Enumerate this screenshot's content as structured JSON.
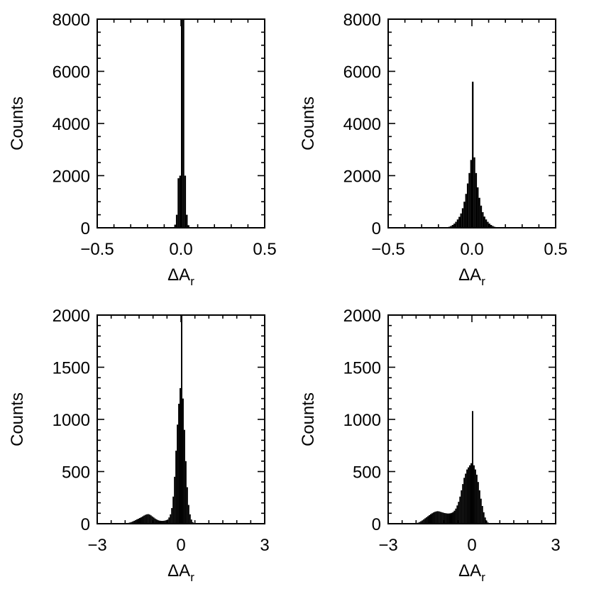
{
  "chart_data": [
    {
      "type": "bar",
      "panel": "top-left",
      "xlabel": "ΔA",
      "xlabel_sub": "r",
      "ylabel": "Counts",
      "xlim": [
        -0.5,
        0.5
      ],
      "ylim": [
        0,
        8000
      ],
      "xticks": [
        -0.5,
        0.0,
        0.5
      ],
      "xtick_labels": [
        "−0.5",
        "0.0",
        "0.5"
      ],
      "xminor": 0.1,
      "yticks": [
        0,
        2000,
        4000,
        6000,
        8000
      ],
      "ytick_labels": [
        "0",
        "2000",
        "4000",
        "6000",
        "8000"
      ],
      "yminor": 500,
      "bin_width": 0.01,
      "x": [
        -0.04,
        -0.03,
        -0.02,
        -0.01,
        0.0,
        0.01,
        0.02,
        0.03,
        0.04
      ],
      "values": [
        120,
        500,
        1900,
        2000,
        8000,
        8000,
        2000,
        500,
        100
      ]
    },
    {
      "type": "bar",
      "panel": "top-right",
      "xlabel": "ΔA",
      "xlabel_sub": "r",
      "ylabel": "Counts",
      "xlim": [
        -0.5,
        0.5
      ],
      "ylim": [
        0,
        8000
      ],
      "xticks": [
        -0.5,
        0.0,
        0.5
      ],
      "xtick_labels": [
        "−0.5",
        "0.0",
        "0.5"
      ],
      "xminor": 0.1,
      "yticks": [
        0,
        2000,
        4000,
        6000,
        8000
      ],
      "ytick_labels": [
        "0",
        "2000",
        "4000",
        "6000",
        "8000"
      ],
      "yminor": 500,
      "bin_width": 0.01,
      "x": [
        -0.15,
        -0.14,
        -0.13,
        -0.12,
        -0.11,
        -0.1,
        -0.09,
        -0.08,
        -0.07,
        -0.06,
        -0.05,
        -0.04,
        -0.03,
        -0.02,
        -0.01,
        0.0,
        0.01,
        0.02,
        0.03,
        0.04,
        0.05,
        0.06,
        0.07,
        0.08,
        0.09,
        0.1,
        0.11,
        0.12,
        0.13,
        0.14
      ],
      "values": [
        20,
        40,
        70,
        110,
        160,
        230,
        320,
        420,
        550,
        750,
        1000,
        1300,
        1700,
        2100,
        2600,
        5600,
        2700,
        2100,
        1550,
        1150,
        850,
        600,
        430,
        320,
        230,
        160,
        110,
        70,
        40,
        20
      ]
    },
    {
      "type": "bar",
      "panel": "bottom-left",
      "xlabel": "ΔA",
      "xlabel_sub": "r",
      "ylabel": "Counts",
      "xlim": [
        -3,
        3
      ],
      "ylim": [
        0,
        2000
      ],
      "xticks": [
        -3,
        0,
        3
      ],
      "xtick_labels": [
        "−3",
        "0",
        "3"
      ],
      "xminor": 0.5,
      "yticks": [
        0,
        500,
        1000,
        1500,
        2000
      ],
      "ytick_labels": [
        "0",
        "500",
        "1000",
        "1500",
        "2000"
      ],
      "yminor": 100,
      "bin_width": 0.05,
      "x": [
        -2.0,
        -1.95,
        -1.9,
        -1.85,
        -1.8,
        -1.75,
        -1.7,
        -1.65,
        -1.6,
        -1.55,
        -1.5,
        -1.45,
        -1.4,
        -1.35,
        -1.3,
        -1.25,
        -1.2,
        -1.15,
        -1.1,
        -1.05,
        -1.0,
        -0.95,
        -0.9,
        -0.85,
        -0.8,
        -0.75,
        -0.7,
        -0.65,
        -0.6,
        -0.55,
        -0.5,
        -0.45,
        -0.4,
        -0.35,
        -0.3,
        -0.25,
        -0.2,
        -0.15,
        -0.1,
        -0.05,
        0.0,
        0.05,
        0.1,
        0.15,
        0.2,
        0.25,
        0.3,
        0.35,
        0.4,
        0.45
      ],
      "values": [
        2,
        4,
        8,
        12,
        16,
        22,
        28,
        35,
        42,
        48,
        55,
        62,
        70,
        78,
        85,
        90,
        92,
        88,
        80,
        70,
        60,
        50,
        42,
        35,
        30,
        28,
        27,
        28,
        30,
        34,
        40,
        60,
        90,
        150,
        260,
        450,
        700,
        950,
        1150,
        1300,
        2000,
        1200,
        900,
        600,
        350,
        180,
        90,
        40,
        15,
        5
      ]
    },
    {
      "type": "bar",
      "panel": "bottom-right",
      "xlabel": "ΔA",
      "xlabel_sub": "r",
      "ylabel": "Counts",
      "xlim": [
        -3,
        3
      ],
      "ylim": [
        0,
        2000
      ],
      "xticks": [
        -3,
        0,
        3
      ],
      "xtick_labels": [
        "−3",
        "0",
        "3"
      ],
      "xminor": 0.5,
      "yticks": [
        0,
        500,
        1000,
        1500,
        2000
      ],
      "ytick_labels": [
        "0",
        "500",
        "1000",
        "1500",
        "2000"
      ],
      "yminor": 100,
      "bin_width": 0.05,
      "x": [
        -2.0,
        -1.95,
        -1.9,
        -1.85,
        -1.8,
        -1.75,
        -1.7,
        -1.65,
        -1.6,
        -1.55,
        -1.5,
        -1.45,
        -1.4,
        -1.35,
        -1.3,
        -1.25,
        -1.2,
        -1.15,
        -1.1,
        -1.05,
        -1.0,
        -0.95,
        -0.9,
        -0.85,
        -0.8,
        -0.75,
        -0.7,
        -0.65,
        -0.6,
        -0.55,
        -0.5,
        -0.45,
        -0.4,
        -0.35,
        -0.3,
        -0.25,
        -0.2,
        -0.15,
        -0.1,
        -0.05,
        0.0,
        0.05,
        0.1,
        0.15,
        0.2,
        0.25,
        0.3,
        0.35,
        0.4,
        0.45,
        0.5,
        0.55,
        0.6
      ],
      "values": [
        5,
        10,
        16,
        24,
        32,
        42,
        52,
        62,
        72,
        82,
        92,
        100,
        108,
        114,
        118,
        120,
        118,
        114,
        110,
        106,
        102,
        100,
        98,
        98,
        100,
        104,
        112,
        125,
        145,
        175,
        210,
        260,
        320,
        380,
        440,
        480,
        520,
        540,
        560,
        580,
        1080,
        560,
        520,
        470,
        400,
        320,
        240,
        170,
        110,
        60,
        30,
        12,
        4
      ]
    }
  ]
}
